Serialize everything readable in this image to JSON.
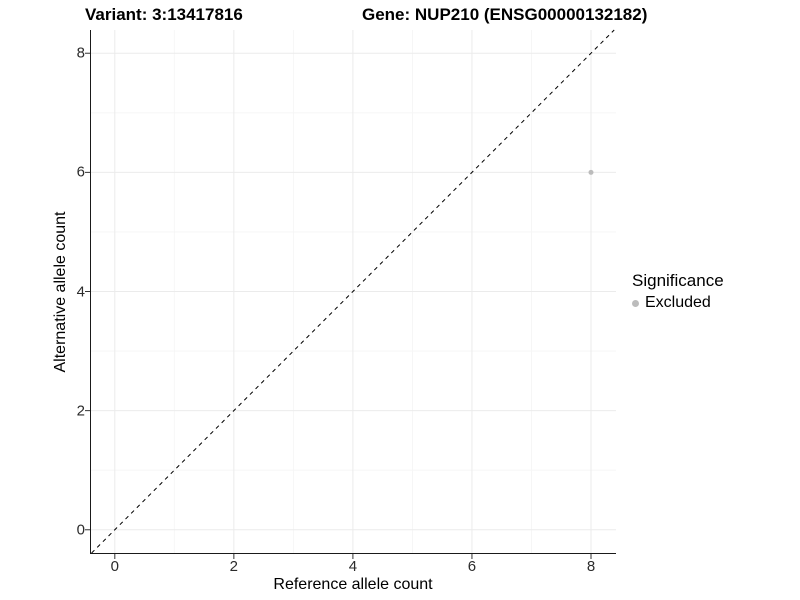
{
  "titles": {
    "variant": "Variant: 3:13417816",
    "gene": "Gene: NUP210 (ENSG00000132182)"
  },
  "chart_data": {
    "type": "scatter",
    "xlabel": "Reference allele count",
    "ylabel": "Alternative allele count",
    "xlim": [
      -0.4,
      8.42
    ],
    "ylim": [
      -0.39,
      8.39
    ],
    "xticks": [
      0,
      2,
      4,
      6,
      8
    ],
    "yticks": [
      0,
      2,
      4,
      6,
      8
    ],
    "xminor": [
      1,
      3,
      5,
      7
    ],
    "yminor": [
      1,
      3,
      5,
      7
    ],
    "grid": true,
    "series": [
      {
        "name": "Excluded",
        "points": [
          {
            "x": 8,
            "y": 6
          }
        ]
      }
    ],
    "abline": {
      "slope": 1,
      "intercept": 0,
      "style": "dashed"
    },
    "legend": {
      "position": "right",
      "title": "Significance",
      "items": [
        {
          "label": "Excluded",
          "color": "#bcbcbc"
        }
      ]
    }
  },
  "colors": {
    "background": "#ffffff",
    "point": "#bcbcbc",
    "grid_major": "#ebebeb",
    "grid_minor": "#f5f5f5",
    "axis_line": "#1a1a1a",
    "tick": "#333333",
    "abline": "#000000",
    "tick_label": "#2b2b2b",
    "text": "#000000"
  }
}
